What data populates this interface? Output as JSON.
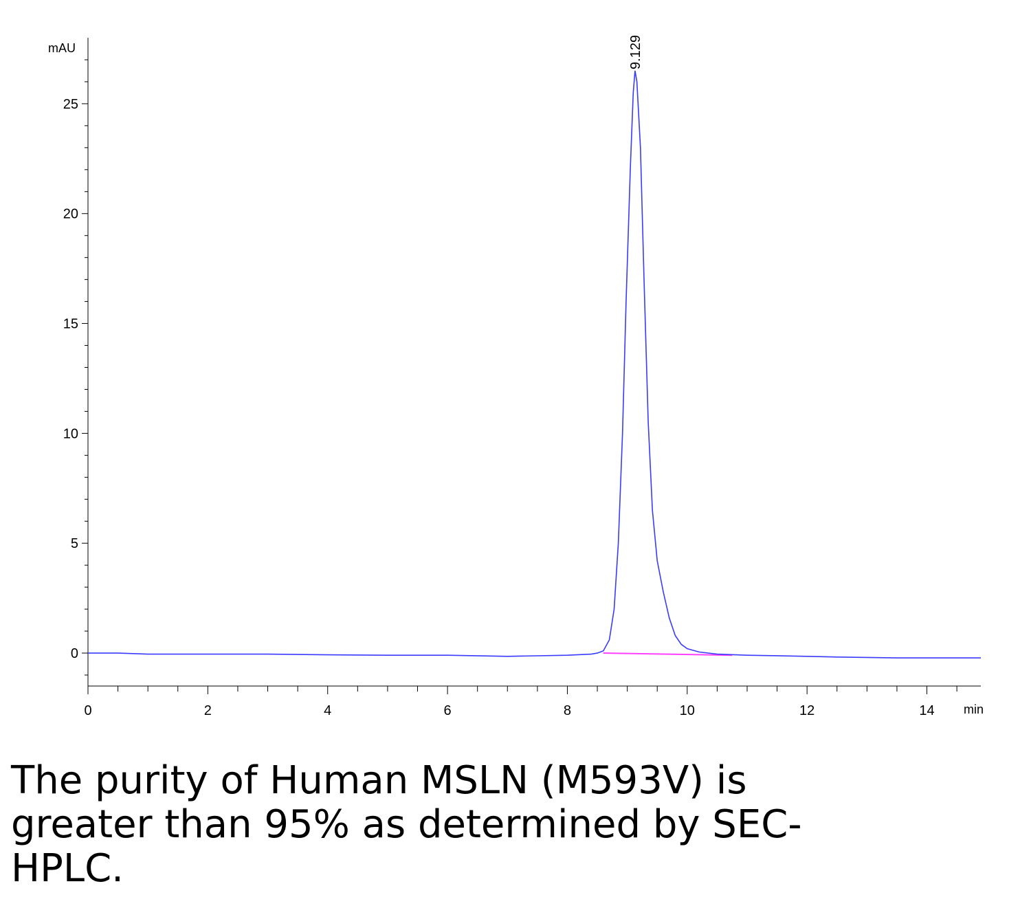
{
  "chart_data": {
    "type": "line",
    "ylabel": "mAU",
    "xlabel": "min",
    "xlim": [
      0,
      14.9
    ],
    "ylim": [
      -1.5,
      28
    ],
    "x_ticks": [
      0,
      2,
      4,
      6,
      8,
      10,
      12,
      14
    ],
    "y_ticks": [
      0,
      5,
      10,
      15,
      20,
      25
    ],
    "peak_label": "9.129",
    "colors": {
      "signal": "#3a3aff",
      "baseline": "#ff40ff",
      "axis": "#000000"
    },
    "series": [
      {
        "x": [
          0,
          0.5,
          1.0,
          1.5,
          2.0,
          3.0,
          4.0,
          5.0,
          6.0,
          7.0,
          8.0,
          8.4,
          8.5,
          8.6,
          8.7,
          8.78,
          8.85,
          8.92,
          8.98,
          9.05,
          9.1,
          9.129,
          9.16,
          9.22,
          9.28,
          9.35,
          9.42,
          9.5,
          9.6,
          9.7,
          9.8,
          9.9,
          10.0,
          10.2,
          10.5,
          11.0,
          11.5,
          12.0,
          12.5,
          13.0,
          13.5,
          14.0,
          14.5,
          14.9
        ],
        "y": [
          0.0,
          0.0,
          -0.05,
          -0.05,
          -0.05,
          -0.05,
          -0.08,
          -0.1,
          -0.1,
          -0.15,
          -0.1,
          -0.05,
          0.0,
          0.1,
          0.6,
          2.0,
          5.0,
          10.0,
          16.0,
          22.0,
          25.5,
          26.5,
          26.0,
          23.0,
          17.0,
          10.5,
          6.5,
          4.2,
          2.8,
          1.6,
          0.8,
          0.4,
          0.2,
          0.05,
          -0.05,
          -0.1,
          -0.12,
          -0.15,
          -0.18,
          -0.2,
          -0.22,
          -0.22,
          -0.22,
          -0.22
        ]
      }
    ]
  },
  "caption": "The purity of Human MSLN (M593V) is greater than 95% as determined by SEC-HPLC."
}
